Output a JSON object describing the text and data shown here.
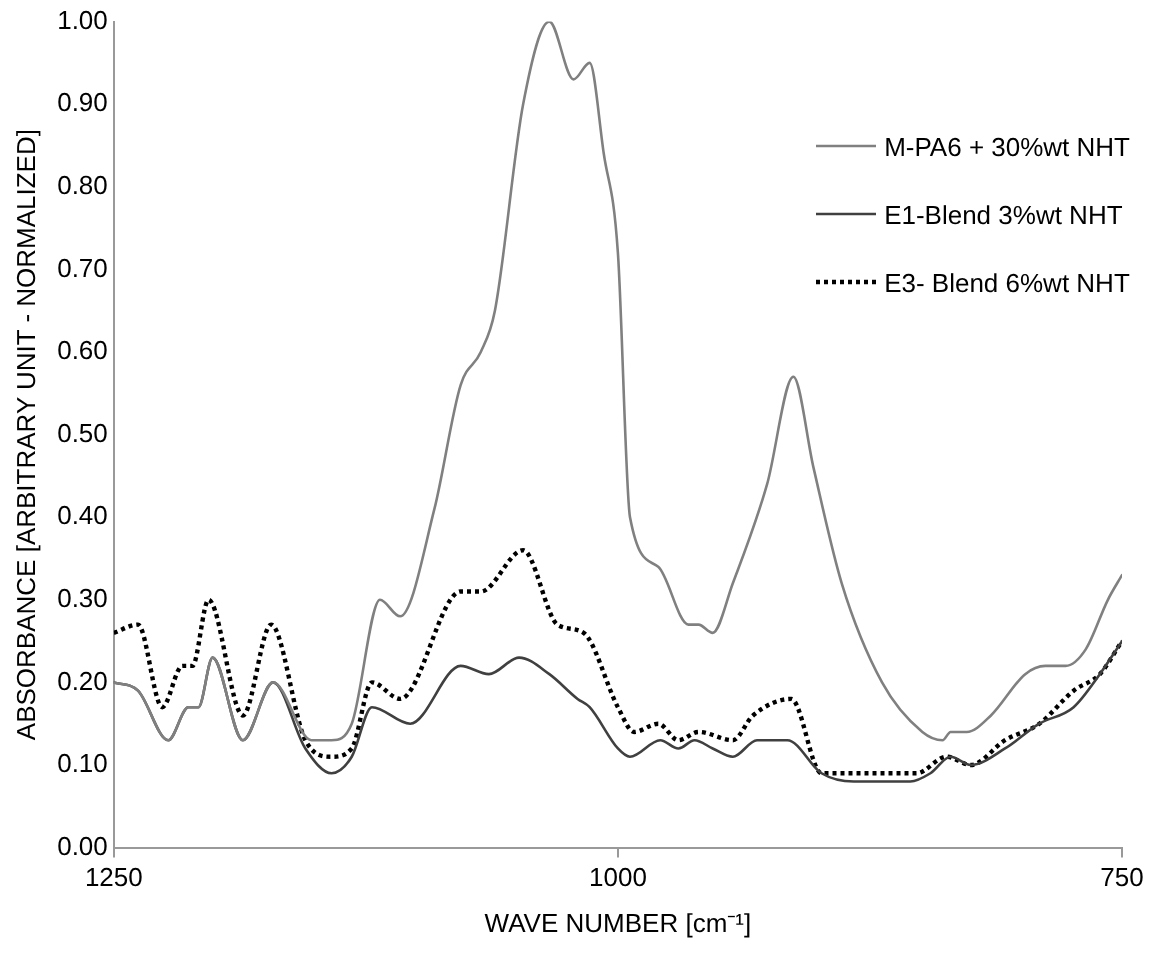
{
  "chart_data": {
    "type": "line",
    "xlabel": "WAVE NUMBER [cm⁻¹]",
    "ylabel": "ABSORBANCE [ARBITRARY UNIT - NORMALIZED]",
    "xlim": [
      1250,
      750
    ],
    "xticks": [
      1250,
      1000,
      750
    ],
    "ylim": [
      0,
      1
    ],
    "yticks": [
      {
        "value": 0,
        "label": "0.00"
      },
      {
        "value": 0.1,
        "label": "0.10"
      },
      {
        "value": 0.2,
        "label": "0.20"
      },
      {
        "value": 0.3,
        "label": "0.30"
      },
      {
        "value": 0.4,
        "label": "0.40"
      },
      {
        "value": 0.5,
        "label": "0.50"
      },
      {
        "value": 0.6,
        "label": "0.60"
      },
      {
        "value": 0.7,
        "label": "0.70"
      },
      {
        "value": 0.8,
        "label": "0.80"
      },
      {
        "value": 0.9,
        "label": "0.90"
      },
      {
        "value": 1,
        "label": "1.00"
      }
    ],
    "grid": false,
    "legend": "top right",
    "marker": "none",
    "series": [
      {
        "name": "M-PA6 + 30%wt NHT",
        "color": "#808080",
        "line_style": "solid",
        "x": [
          1250,
          1238,
          1223,
          1213,
          1208,
          1201,
          1186,
          1171,
          1152,
          1142,
          1132,
          1118,
          1108,
          1091,
          1078,
          1068,
          1061,
          1047,
          1034,
          1022,
          1014,
          1007,
          1000,
          994,
          980,
          965,
          960,
          953,
          943,
          926,
          913,
          903,
          889,
          869,
          849,
          839,
          835,
          827,
          815,
          798,
          788,
          778,
          768,
          757,
          750
        ],
        "values": [
          0.2,
          0.19,
          0.13,
          0.17,
          0.17,
          0.23,
          0.13,
          0.2,
          0.13,
          0.13,
          0.15,
          0.3,
          0.28,
          0.41,
          0.56,
          0.6,
          0.65,
          0.9,
          1.0,
          0.93,
          0.95,
          0.84,
          0.72,
          0.4,
          0.34,
          0.27,
          0.27,
          0.26,
          0.32,
          0.44,
          0.57,
          0.46,
          0.32,
          0.2,
          0.14,
          0.13,
          0.14,
          0.14,
          0.16,
          0.21,
          0.22,
          0.22,
          0.24,
          0.3,
          0.33
        ]
      },
      {
        "name": "E1-Blend 3%wt NHT",
        "color": "#404040",
        "line_style": "solid",
        "x": [
          1250,
          1238,
          1223,
          1213,
          1208,
          1201,
          1186,
          1171,
          1155,
          1142,
          1132,
          1122,
          1103,
          1078,
          1064,
          1049,
          1034,
          1020,
          1014,
          1000,
          994,
          979,
          970,
          962,
          953,
          943,
          931,
          925,
          916,
          899,
          883,
          855,
          845,
          835,
          825,
          808,
          791,
          774,
          761,
          750
        ],
        "values": [
          0.2,
          0.19,
          0.13,
          0.17,
          0.17,
          0.23,
          0.13,
          0.2,
          0.12,
          0.09,
          0.11,
          0.17,
          0.15,
          0.22,
          0.21,
          0.23,
          0.21,
          0.18,
          0.17,
          0.12,
          0.11,
          0.13,
          0.12,
          0.13,
          0.12,
          0.11,
          0.13,
          0.13,
          0.13,
          0.09,
          0.08,
          0.08,
          0.09,
          0.11,
          0.1,
          0.12,
          0.15,
          0.17,
          0.21,
          0.25
        ]
      },
      {
        "name": "E3- Blend 6%wt NHT",
        "color": "#000000",
        "line_style": "dotted",
        "x": [
          1250,
          1238,
          1226,
          1216,
          1211,
          1203,
          1186,
          1172,
          1155,
          1142,
          1132,
          1122,
          1108,
          1078,
          1068,
          1047,
          1030,
          1017,
          1000,
          992,
          980,
          970,
          960,
          943,
          933,
          914,
          899,
          876,
          852,
          837,
          825,
          808,
          791,
          774,
          761,
          750
        ],
        "values": [
          0.26,
          0.27,
          0.17,
          0.22,
          0.22,
          0.3,
          0.16,
          0.27,
          0.13,
          0.11,
          0.12,
          0.2,
          0.18,
          0.31,
          0.31,
          0.36,
          0.27,
          0.26,
          0.17,
          0.14,
          0.15,
          0.13,
          0.14,
          0.13,
          0.16,
          0.18,
          0.09,
          0.09,
          0.09,
          0.11,
          0.1,
          0.13,
          0.15,
          0.19,
          0.21,
          0.25
        ]
      }
    ]
  }
}
